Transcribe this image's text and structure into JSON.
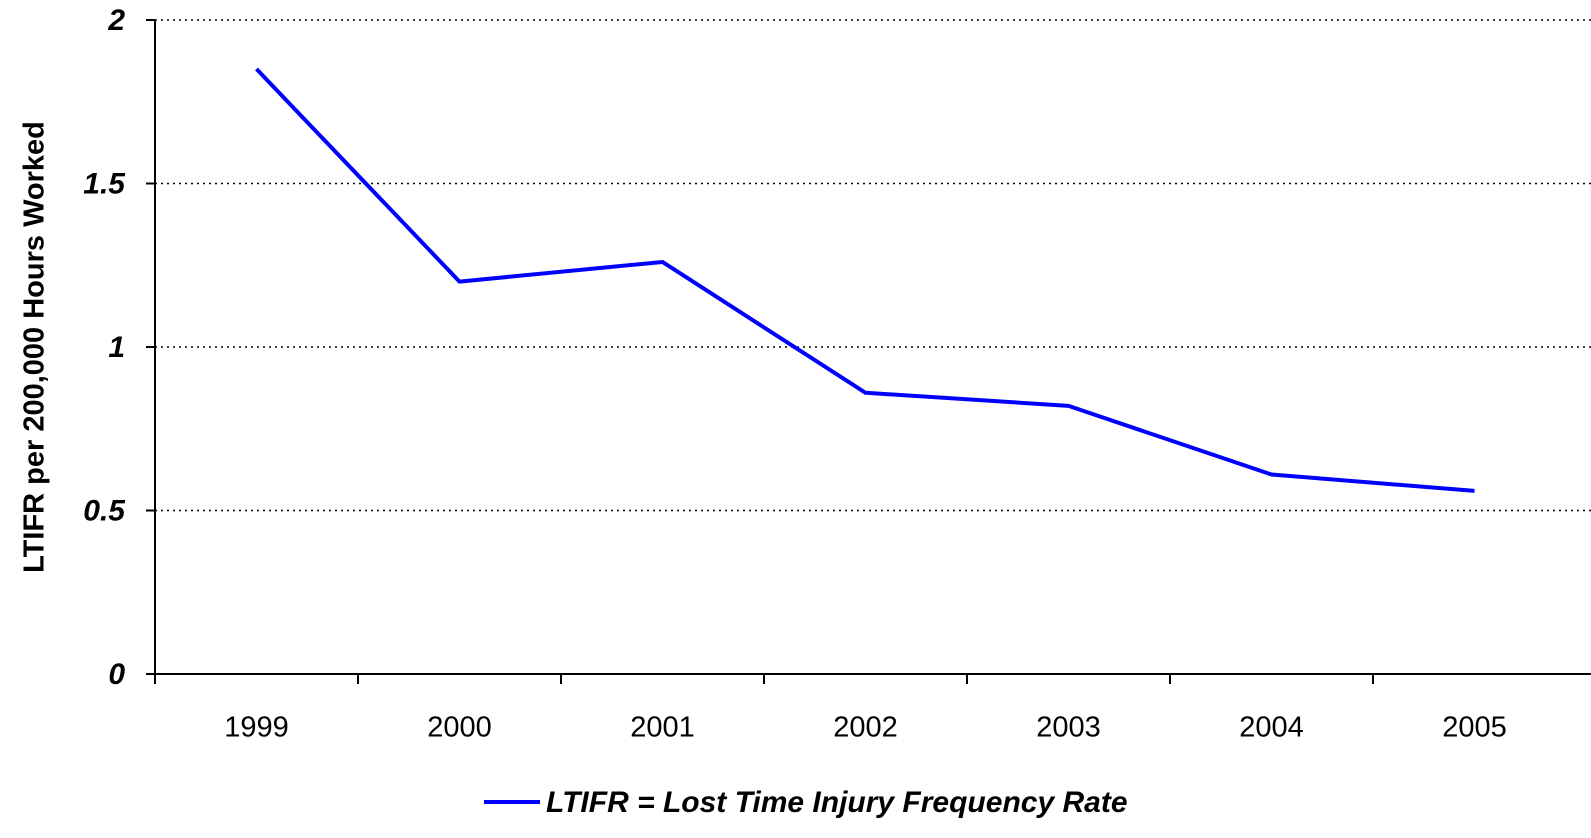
{
  "chart_data": {
    "type": "line",
    "y_label": "LTIFR per 200,000 Hours Worked",
    "categories": [
      "1999",
      "2000",
      "2001",
      "2002",
      "2003",
      "2004",
      "2005"
    ],
    "series": [
      {
        "name": "LTIFR = Lost Time Injury Frequency Rate",
        "color": "#0000ff",
        "values": [
          1.85,
          1.2,
          1.26,
          0.86,
          0.82,
          0.61,
          0.56
        ]
      }
    ],
    "ylim": [
      0,
      2
    ],
    "yticks": [
      0,
      0.5,
      1,
      1.5,
      2
    ],
    "grid": true,
    "legend": "bottom"
  }
}
